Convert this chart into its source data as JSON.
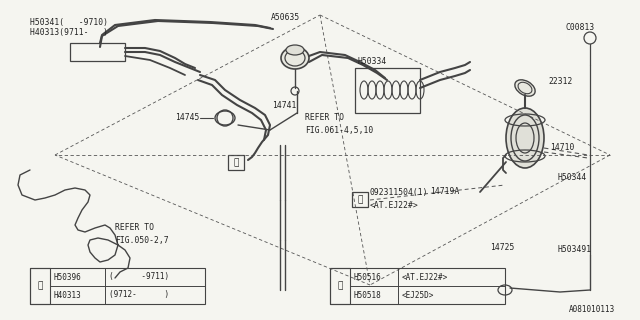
{
  "bg_color": "#f5f5f0",
  "line_color": "#444444",
  "text_color": "#222222",
  "diagram_number": "A081010113",
  "fig_width": 6.4,
  "fig_height": 3.2,
  "dpi": 100,
  "labels": {
    "top_left_1": "H50341(   -9710)",
    "top_left_2": "H40313(9711-   )",
    "a50635": "A50635",
    "h50334": "H50334",
    "c00813": "C00813",
    "n22312": "22312",
    "n14741": "14741",
    "n14745": "14745",
    "refer1": "REFER TO",
    "refer1b": "FIG.061-4,5,10",
    "n14710": "14710",
    "n14719a": "14719A",
    "h50344": "H50344",
    "n092": "092311504(1)",
    "atej22": "<AT.EJ22#>",
    "n14725": "14725",
    "h503491": "H503491",
    "refer2": "REFER TO",
    "refer2b": "FIG.050-2,7",
    "t1_r1c1": "H50396",
    "t1_r1c2": "(      -9711)",
    "t1_r2c1": "H40313",
    "t1_r2c2": "(9712-      )",
    "t2_r1c1": "H50516",
    "t2_r1c2": "<AT.EJ22#>",
    "t2_r2c1": "H50518",
    "t2_r2c2": "<EJ25D>"
  }
}
